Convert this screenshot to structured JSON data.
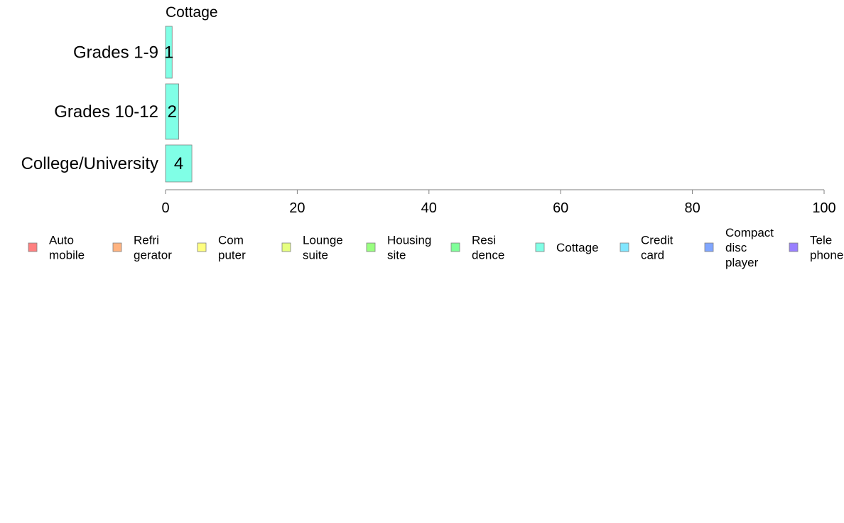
{
  "chart_data": {
    "type": "bar",
    "orientation": "horizontal",
    "panel_title": "Cottage",
    "categories": [
      "Grades 1-9",
      "Grades 10-12",
      "College/University"
    ],
    "series": [
      {
        "name": "Cottage",
        "values": [
          1,
          2,
          4
        ],
        "labels": [
          "1",
          "2",
          "4"
        ]
      }
    ],
    "xlim": [
      0,
      100
    ],
    "xticks": [
      0,
      20,
      40,
      60,
      80,
      100
    ],
    "xtick_labels": [
      "0",
      "20",
      "40",
      "60",
      "80",
      "100"
    ],
    "bar_color": "#80ffe6",
    "grid": false,
    "legend_position": "bottom",
    "legend": [
      {
        "lines": [
          "Auto",
          "mobile"
        ],
        "color": "#ff8080"
      },
      {
        "lines": [
          "Refri",
          "gerator"
        ],
        "color": "#ffb380"
      },
      {
        "lines": [
          "Com",
          "puter"
        ],
        "color": "#ffff80"
      },
      {
        "lines": [
          "Lounge",
          "suite"
        ],
        "color": "#e6ff80"
      },
      {
        "lines": [
          "Housing",
          "site"
        ],
        "color": "#99ff80"
      },
      {
        "lines": [
          "Resi",
          "dence"
        ],
        "color": "#80ff99"
      },
      {
        "lines": [
          "Cottage"
        ],
        "color": "#80ffe6"
      },
      {
        "lines": [
          "Credit",
          "card"
        ],
        "color": "#80e6ff"
      },
      {
        "lines": [
          "Compact",
          "disc",
          "player"
        ],
        "color": "#80a6ff"
      },
      {
        "lines": [
          "Tele",
          "phone"
        ],
        "color": "#9980ff"
      }
    ]
  }
}
